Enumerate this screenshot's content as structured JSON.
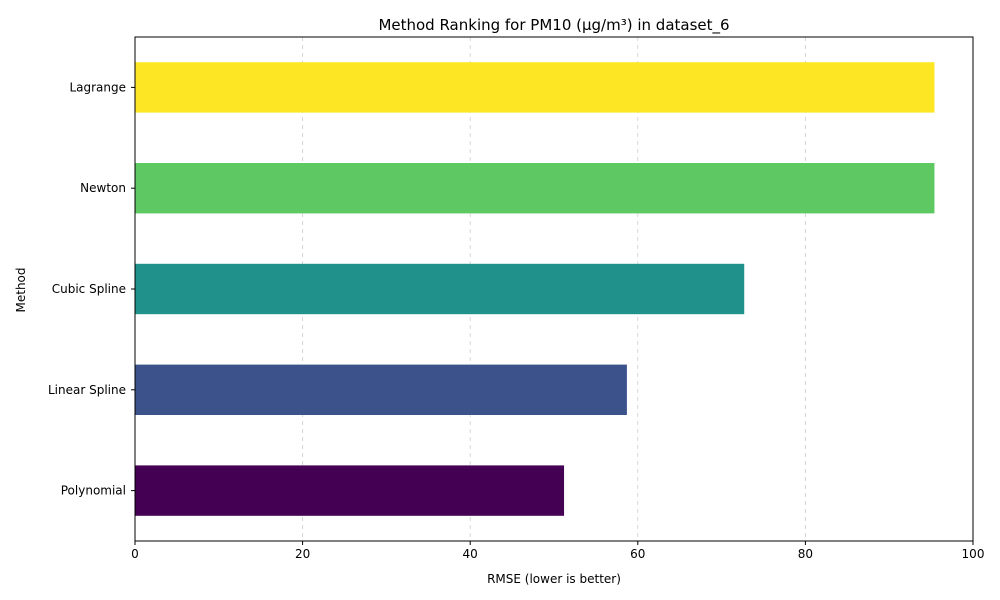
{
  "chart_data": {
    "type": "bar",
    "orientation": "horizontal",
    "title": "Method Ranking for PM10 (µg/m³) in dataset_6",
    "xlabel": "RMSE (lower is better)",
    "ylabel": "Method",
    "xlim": [
      0,
      100
    ],
    "xticks": [
      0,
      20,
      40,
      60,
      80,
      100
    ],
    "grid": "x-axis dashed",
    "categories": [
      "Polynomial",
      "Linear Spline",
      "Cubic Spline",
      "Newton",
      "Lagrange"
    ],
    "values": [
      51.2,
      58.7,
      72.7,
      95.4,
      95.4
    ],
    "colors": [
      "#440154",
      "#3b528b",
      "#21918c",
      "#5ec962",
      "#fde725"
    ]
  }
}
